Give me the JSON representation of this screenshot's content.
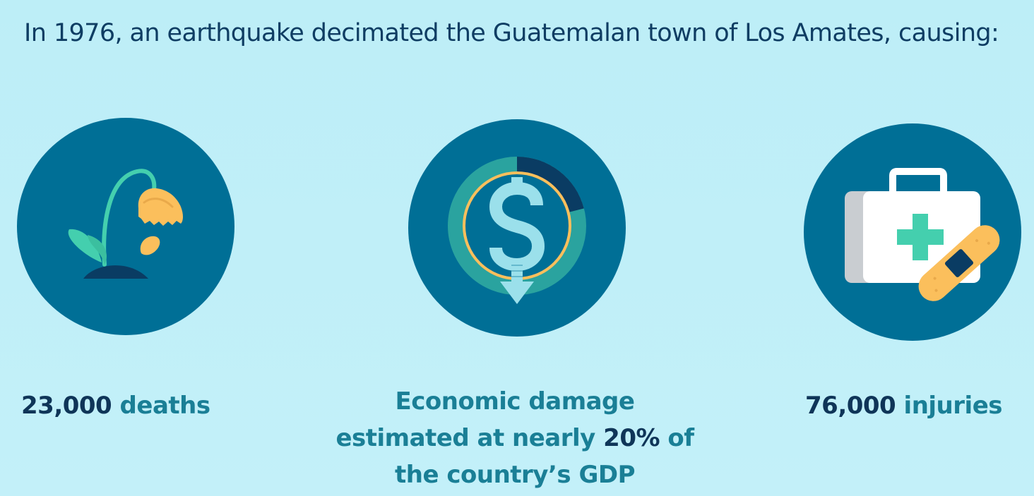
{
  "headline": "In 1976, an earthquake decimated the Guatemalan town of Los Amates, causing:",
  "stats": {
    "deaths": {
      "number": "23,000",
      "label": "deaths",
      "icon": "wilted-flower-icon"
    },
    "economy": {
      "line1": "Economic damage",
      "line2_prefix": "estimated at nearly",
      "percent": "20%",
      "line2_suffix": "of",
      "line3": "the country’s GDP",
      "icon": "falling-dollar-icon"
    },
    "injuries": {
      "number": "76,000",
      "label": "injuries",
      "icon": "first-aid-kit-icon"
    }
  },
  "colors": {
    "background": "#bdeef7",
    "circle": "#006f96",
    "accent_text": "#1a7f96",
    "strong_text": "#0f3558",
    "orange": "#fbbf5c",
    "mint": "#44cfae",
    "teal_ring": "#2aa39f",
    "light_cyan": "#9be0eb"
  }
}
